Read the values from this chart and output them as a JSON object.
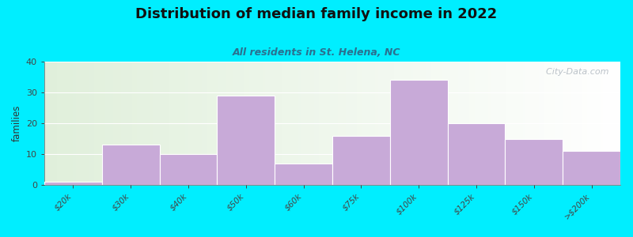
{
  "title": "Distribution of median family income in 2022",
  "subtitle": "All residents in St. Helena, NC",
  "categories": [
    "$20k",
    "$30k",
    "$40k",
    "$50k",
    "$60k",
    "$75k",
    "$100k",
    "$125k",
    "$150k",
    ">$200k"
  ],
  "values": [
    1,
    13,
    10,
    29,
    7,
    16,
    34,
    20,
    15,
    11
  ],
  "bar_color": "#c8aad8",
  "ylim": [
    0,
    40
  ],
  "yticks": [
    0,
    10,
    20,
    30,
    40
  ],
  "ylabel": "families",
  "background_outer": "#00eeff",
  "title_fontsize": 13,
  "subtitle_fontsize": 9,
  "subtitle_color": "#2a7090",
  "watermark_text": "  City-Data.com",
  "watermark_color": "#b0b8c0"
}
